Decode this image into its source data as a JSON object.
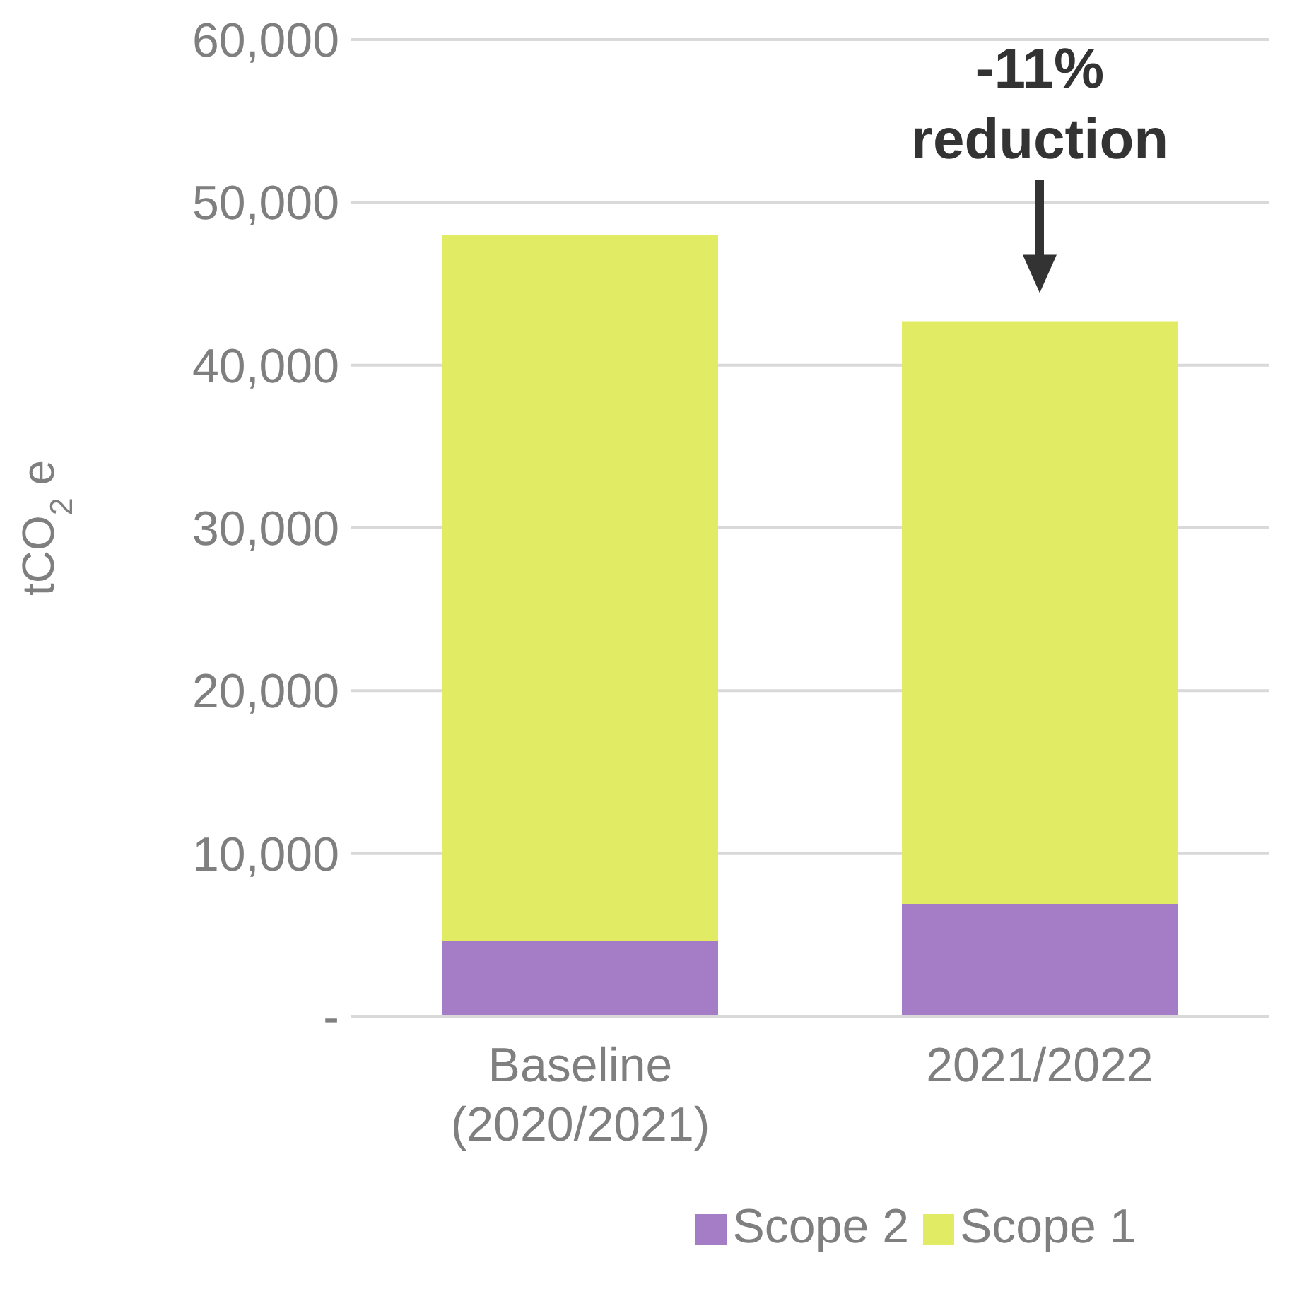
{
  "chart_data": {
    "type": "bar",
    "stacked": true,
    "ylabel": "tCO$_{2}$e",
    "categories": [
      "Baseline (2020/2021)",
      "2021/2022"
    ],
    "series": [
      {
        "name": "Scope 2",
        "color": "#a57dc6",
        "values": [
          4600,
          6900
        ]
      },
      {
        "name": "Scope 1",
        "color": "#e1eb63",
        "values": [
          43400,
          35800
        ]
      }
    ],
    "ylim": [
      0,
      60000
    ],
    "yticks": [
      {
        "value": 0,
        "label": "-"
      },
      {
        "value": 10000,
        "label": "10,000"
      },
      {
        "value": 20000,
        "label": "20,000"
      },
      {
        "value": 30000,
        "label": "30,000"
      },
      {
        "value": 40000,
        "label": "40,000"
      },
      {
        "value": 50000,
        "label": "50,000"
      },
      {
        "value": 60000,
        "label": "60,000"
      }
    ],
    "grid": "y",
    "legend": "bottom",
    "annotations": [
      {
        "text": "-11% reduction",
        "x": "2021/2022",
        "y": 42700
      }
    ]
  }
}
